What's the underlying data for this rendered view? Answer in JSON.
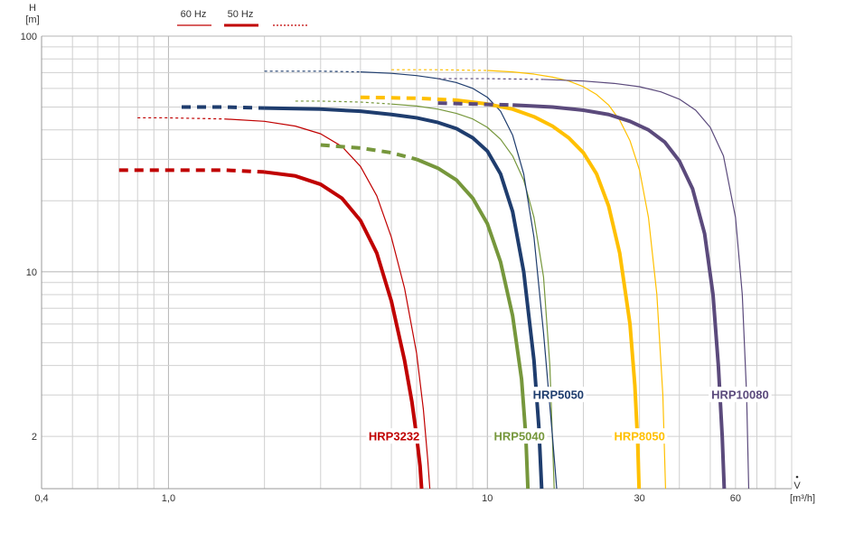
{
  "chart_data": {
    "type": "line",
    "x_scale": "log",
    "y_scale": "log",
    "xlim": [
      0.4,
      90
    ],
    "ylim": [
      1.2,
      100
    ],
    "xlabel": "V",
    "xunit": "[m³/h]",
    "ylabel": "H",
    "yunit": "[m]",
    "x_ticks": [
      {
        "value": 0.4,
        "label": "0,4"
      },
      {
        "value": 1.0,
        "label": "1,0"
      },
      {
        "value": 10,
        "label": "10"
      },
      {
        "value": 30,
        "label": "30"
      },
      {
        "value": 60,
        "label": "60"
      }
    ],
    "y_ticks": [
      {
        "value": 2,
        "label": "2"
      },
      {
        "value": 10,
        "label": "10"
      },
      {
        "value": 100,
        "label": "100"
      }
    ],
    "grid": true,
    "legend": {
      "position": "top-left",
      "items": [
        {
          "label": "60 Hz",
          "style": "thin"
        },
        {
          "label": "50 Hz",
          "style": "thick"
        },
        {
          "label": "",
          "style": "dotted"
        }
      ]
    },
    "colors": {
      "HRP3232": "#c00000",
      "HRP5040": "#76973c",
      "HRP5050": "#1f3d6e",
      "HRP8050": "#ffc000",
      "HRP10080": "#5b4a7c"
    },
    "series": [
      {
        "name": "HRP3232",
        "freq": "50 Hz",
        "color": "#c00000",
        "dashed": {
          "x": [
            0.7,
            1.0,
            1.5,
            2.0
          ],
          "y": [
            27,
            27,
            27,
            26.5
          ]
        },
        "points": {
          "x": [
            2.0,
            2.5,
            3.0,
            3.5,
            4.0,
            4.5,
            5.0,
            5.5,
            5.8,
            6.0,
            6.15,
            6.22
          ],
          "y": [
            26.5,
            25.5,
            23.5,
            20.5,
            16.5,
            12,
            7.5,
            4.2,
            2.8,
            2.0,
            1.5,
            1.2
          ]
        }
      },
      {
        "name": "HRP3232",
        "freq": "60 Hz",
        "color": "#c00000",
        "dashed": {
          "x": [
            0.8,
            1.0,
            1.5
          ],
          "y": [
            45,
            45,
            44.5
          ]
        },
        "points": {
          "x": [
            1.5,
            2.0,
            2.5,
            3.0,
            3.5,
            4.0,
            4.5,
            5.0,
            5.5,
            6.0,
            6.3,
            6.5,
            6.6
          ],
          "y": [
            44.5,
            43.5,
            41.5,
            38.5,
            34,
            28,
            21,
            14,
            8.5,
            4.5,
            2.6,
            1.6,
            1.2
          ]
        }
      },
      {
        "name": "HRP5040",
        "freq": "50 Hz",
        "color": "#76973c",
        "dashed": {
          "x": [
            3.0,
            4.0,
            5.0,
            6.0
          ],
          "y": [
            34.5,
            33.5,
            32,
            30
          ]
        },
        "points": {
          "x": [
            6.0,
            7.0,
            8.0,
            9.0,
            10.0,
            11.0,
            12.0,
            12.8,
            13.2,
            13.4
          ],
          "y": [
            30,
            27.5,
            24.5,
            20.5,
            16,
            11,
            6.5,
            3.5,
            2.0,
            1.2
          ]
        }
      },
      {
        "name": "HRP5040",
        "freq": "60 Hz",
        "color": "#76973c",
        "dashed": {
          "x": [
            2.5,
            3.0,
            4.0,
            5.0
          ],
          "y": [
            53,
            53,
            52.5,
            51.5
          ]
        },
        "points": {
          "x": [
            5.0,
            6.0,
            7.0,
            8.0,
            9.0,
            10.0,
            11.0,
            12.0,
            13.0,
            14.0,
            15.0,
            15.7,
            16.2
          ],
          "y": [
            51.5,
            50.5,
            49,
            47,
            44.5,
            41,
            36.5,
            31,
            24.5,
            17,
            9.5,
            4,
            1.2
          ]
        }
      },
      {
        "name": "HRP5050",
        "freq": "50 Hz",
        "color": "#1f3d6e",
        "dashed": {
          "x": [
            1.1,
            1.5,
            2.0
          ],
          "y": [
            50,
            50,
            49.5
          ]
        },
        "points": {
          "x": [
            2.0,
            3.0,
            4.0,
            5.0,
            6.0,
            7.0,
            8.0,
            9.0,
            10.0,
            11.0,
            12.0,
            13.0,
            14.0,
            14.5,
            14.8
          ],
          "y": [
            49.5,
            49,
            48,
            46.5,
            45,
            43,
            40.5,
            37,
            32.5,
            26,
            18,
            10,
            4.2,
            2.2,
            1.2
          ]
        }
      },
      {
        "name": "HRP5050",
        "freq": "60 Hz",
        "color": "#1f3d6e",
        "dashed": {
          "x": [
            2.0,
            3.0,
            4.0
          ],
          "y": [
            71,
            71,
            70.5
          ]
        },
        "points": {
          "x": [
            4.0,
            5.0,
            6.0,
            7.0,
            8.0,
            9.0,
            10.0,
            11.0,
            12.0,
            13.0,
            14.0,
            15.0,
            16.0,
            16.5
          ],
          "y": [
            70.5,
            69.5,
            68,
            66,
            63.5,
            60,
            55,
            48,
            38,
            26,
            14,
            5.5,
            2.0,
            1.2
          ]
        }
      },
      {
        "name": "HRP8050",
        "freq": "50 Hz",
        "color": "#ffc000",
        "dashed": {
          "x": [
            4.0,
            6.0,
            8.0
          ],
          "y": [
            55,
            54.5,
            53.5
          ]
        },
        "points": {
          "x": [
            8.0,
            10.0,
            12.0,
            14.0,
            16.0,
            18.0,
            20.0,
            22.0,
            24.0,
            26.0,
            28.0,
            29.0,
            29.6,
            29.9
          ],
          "y": [
            53.5,
            51.5,
            49,
            45.5,
            41.5,
            37,
            32,
            26,
            19,
            12,
            6,
            3.3,
            1.9,
            1.2
          ]
        }
      },
      {
        "name": "HRP8050",
        "freq": "60 Hz",
        "color": "#ffc000",
        "dashed": {
          "x": [
            5.0,
            7.0,
            10.0
          ],
          "y": [
            72,
            72,
            71.5
          ]
        },
        "points": {
          "x": [
            10.0,
            12.0,
            14.0,
            16.0,
            18.0,
            20.0,
            22.0,
            24.0,
            26.0,
            28.0,
            30.0,
            32.0,
            34.0,
            35.5,
            36.2
          ],
          "y": [
            71.5,
            70.5,
            69,
            67,
            64.5,
            61,
            56.5,
            51,
            44,
            36,
            27,
            17,
            8,
            3,
            1.2
          ]
        }
      },
      {
        "name": "HRP10080",
        "freq": "50 Hz",
        "color": "#5b4a7c",
        "dashed": {
          "x": [
            7.0,
            9.0,
            12.0
          ],
          "y": [
            52,
            51.5,
            51
          ]
        },
        "points": {
          "x": [
            12.0,
            16.0,
            20.0,
            24.0,
            28.0,
            32.0,
            36.0,
            40.0,
            44.0,
            48.0,
            51.0,
            53.0,
            54.5,
            55.3
          ],
          "y": [
            51,
            50,
            48.5,
            46.5,
            43.5,
            40,
            35.5,
            29.5,
            22.5,
            14.5,
            8,
            4,
            2.0,
            1.2
          ]
        }
      },
      {
        "name": "HRP10080",
        "freq": "60 Hz",
        "color": "#5b4a7c",
        "dashed": {
          "x": [
            7.0,
            10.0,
            15.0
          ],
          "y": [
            66,
            66,
            65.5
          ]
        },
        "points": {
          "x": [
            15.0,
            20.0,
            25.0,
            30.0,
            35.0,
            40.0,
            45.0,
            50.0,
            55.0,
            60.0,
            63.0,
            65.0,
            66.0
          ],
          "y": [
            65.5,
            64.5,
            63,
            61,
            58,
            54,
            48.5,
            41,
            31,
            17,
            8,
            3,
            1.2
          ]
        }
      }
    ],
    "curve_labels": [
      {
        "text": "HRP3232",
        "color": "#c00000",
        "x": 5.1,
        "y": 2.0
      },
      {
        "text": "HRP5040",
        "color": "#76973c",
        "x": 12.6,
        "y": 2.0
      },
      {
        "text": "HRP5050",
        "color": "#1f3d6e",
        "x": 16.7,
        "y": 3.0
      },
      {
        "text": "HRP8050",
        "color": "#ffc000",
        "x": 30.0,
        "y": 2.0
      },
      {
        "text": "HRP10080",
        "color": "#5b4a7c",
        "x": 62.0,
        "y": 3.0
      }
    ]
  }
}
